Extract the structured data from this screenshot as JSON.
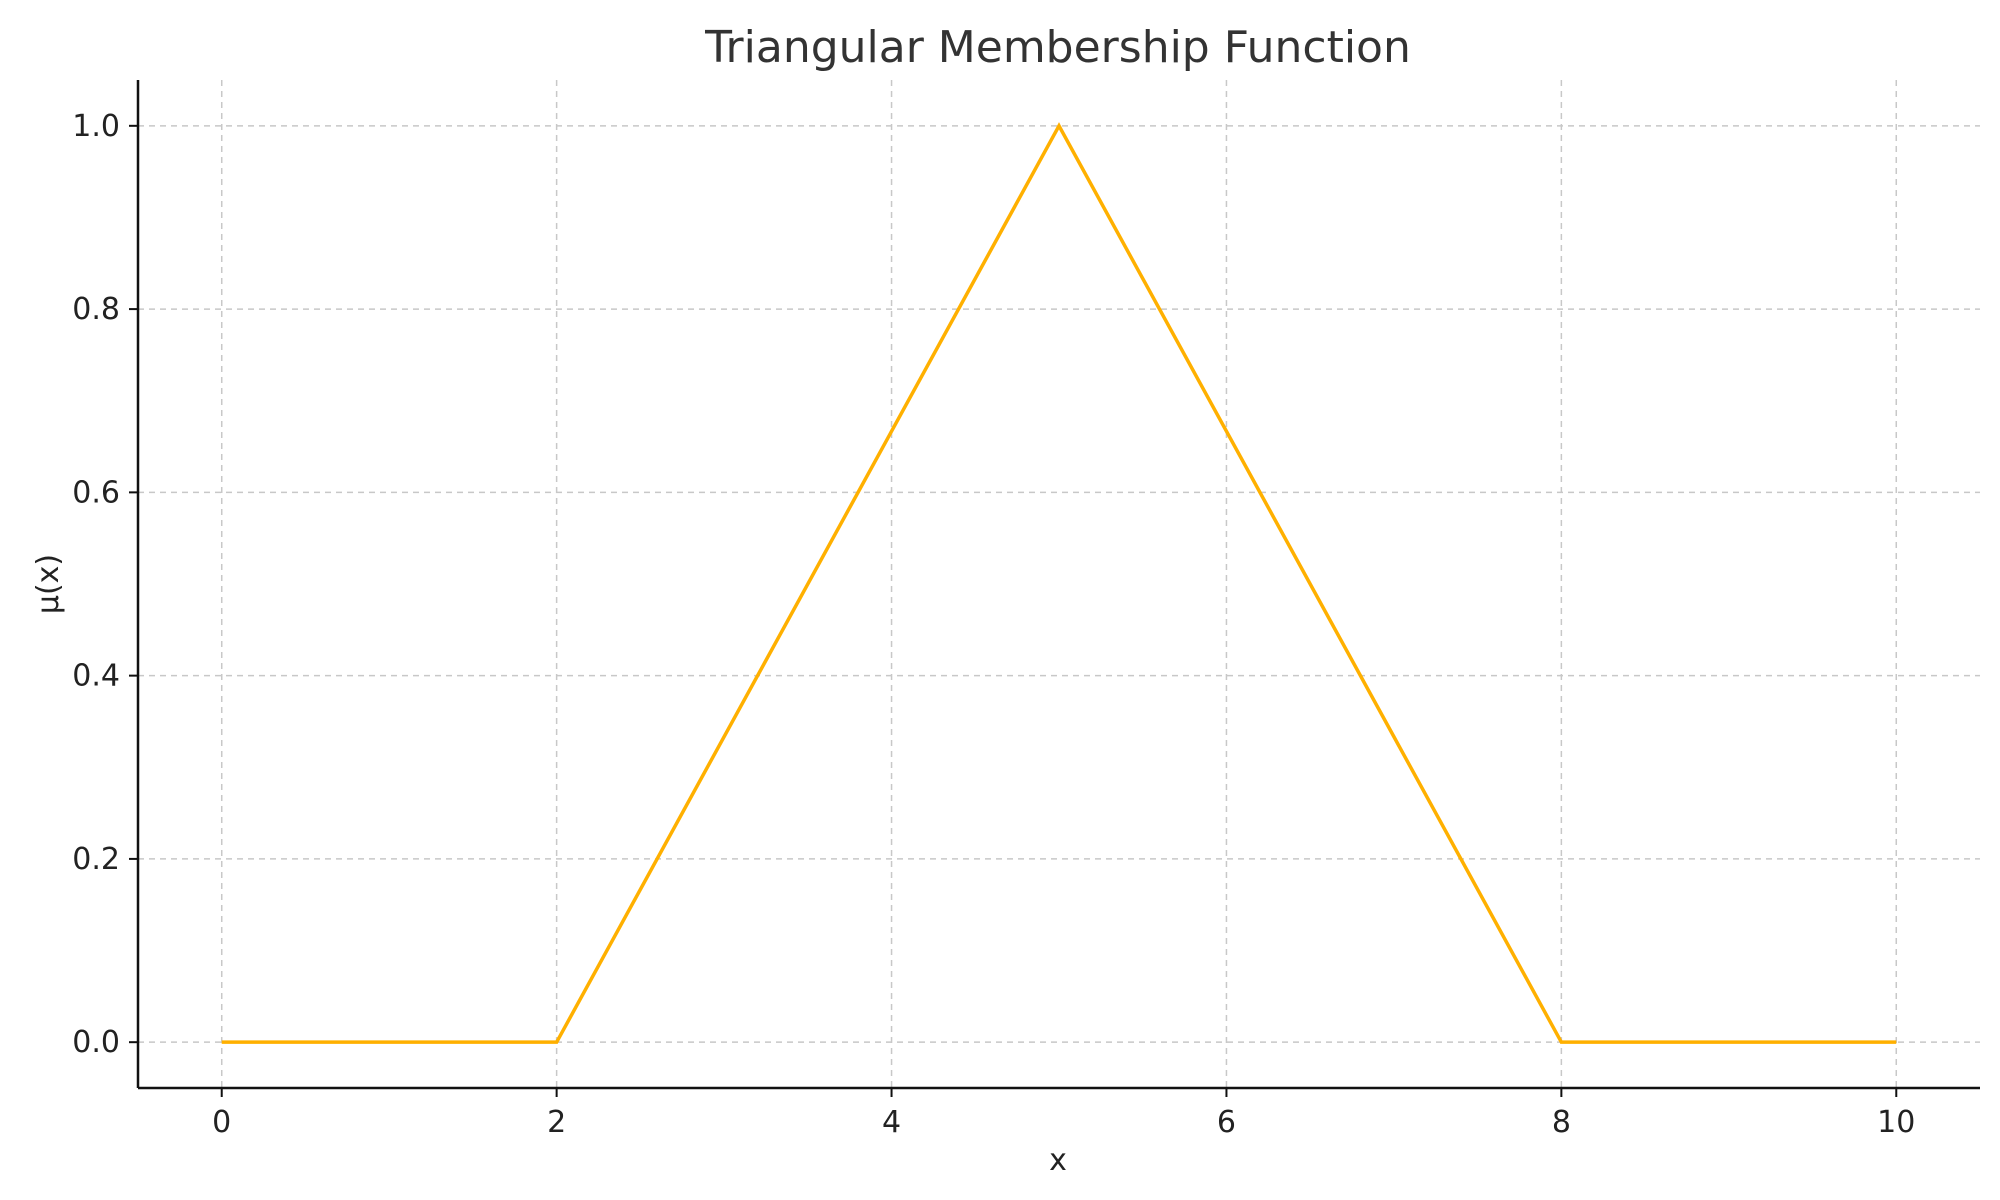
{
  "chart_data": {
    "type": "line",
    "title": "Triangular Membership Function",
    "xlabel": "x",
    "ylabel": "μ(x)",
    "xlim": [
      -0.5,
      10.5
    ],
    "ylim": [
      -0.05,
      1.05
    ],
    "xticks": [
      0,
      2,
      4,
      6,
      8,
      10
    ],
    "xtick_labels": [
      "0",
      "2",
      "4",
      "6",
      "8",
      "10"
    ],
    "yticks": [
      0.0,
      0.2,
      0.4,
      0.6,
      0.8,
      1.0
    ],
    "ytick_labels": [
      "0.0",
      "0.2",
      "0.4",
      "0.6",
      "0.8",
      "1.0"
    ],
    "grid": true,
    "series": [
      {
        "color": "#FFB000",
        "x": [
          0,
          2,
          5,
          8,
          10
        ],
        "y": [
          0,
          0,
          1,
          0,
          0
        ]
      }
    ]
  }
}
